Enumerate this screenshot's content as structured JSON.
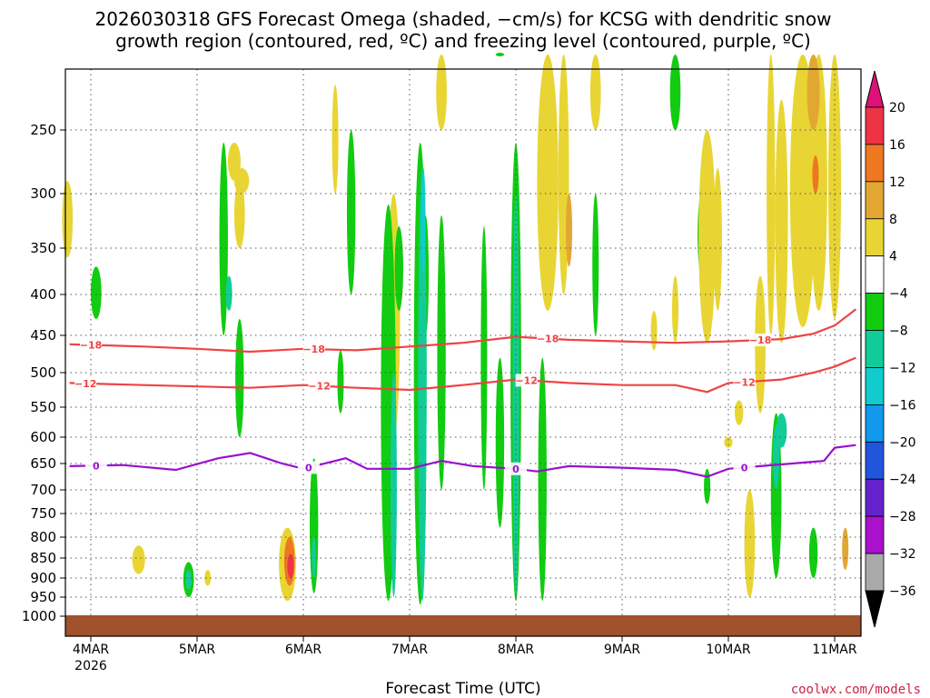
{
  "chart_data": {
    "type": "heatmap",
    "title_line1": "2026030318 GFS Forecast Omega (shaded, −cm/s) for KCSG with dendritic snow",
    "title_line2": "growth region (contoured, red, ºC) and freezing level (contoured, purple, ºC)",
    "xlabel": "Forecast Time (UTC)",
    "x_ticks": [
      "4MAR",
      "5MAR",
      "6MAR",
      "7MAR",
      "8MAR",
      "9MAR",
      "10MAR",
      "11MAR"
    ],
    "x_year": "2026",
    "y_ticks": [
      "250",
      "300",
      "350",
      "400",
      "450",
      "500",
      "550",
      "600",
      "650",
      "700",
      "750",
      "800",
      "850",
      "900",
      "950",
      "1000"
    ],
    "y_values": [
      250,
      300,
      350,
      400,
      450,
      500,
      550,
      600,
      650,
      700,
      750,
      800,
      850,
      900,
      950,
      1000
    ],
    "ylim": [
      200,
      1000
    ],
    "xlim_days": [
      -0.2,
      7.2
    ],
    "colorbar_labels": [
      "20",
      "16",
      "12",
      "8",
      "4",
      "−4",
      "−8",
      "−12",
      "−16",
      "−20",
      "−24",
      "−28",
      "−32",
      "−36"
    ],
    "colorbar_colors": [
      "#ee3344",
      "#ee7722",
      "#e2a733",
      "#e8d533",
      "#ffffff",
      "#11cc11",
      "#11cc99",
      "#11cccc",
      "#1199ee",
      "#2255dd",
      "#6622cc",
      "#aa11cc",
      "#aaaaaa"
    ],
    "contours": [
      {
        "name": "-18",
        "color": "#ee4444",
        "label": "−18",
        "x": [
          -0.2,
          0.5,
          1.0,
          1.5,
          2.0,
          2.5,
          3.0,
          3.5,
          4.0,
          4.5,
          5.0,
          5.5,
          6.0,
          6.5,
          6.8,
          7.0,
          7.2
        ],
        "p": [
          462,
          465,
          468,
          472,
          468,
          470,
          465,
          460,
          452,
          456,
          458,
          460,
          458,
          455,
          448,
          438,
          418
        ],
        "label_x": [
          0.0,
          2.1,
          4.3,
          6.3
        ]
      },
      {
        "name": "-12",
        "color": "#ee4444",
        "label": "−12",
        "x": [
          -0.2,
          0.5,
          1.0,
          1.5,
          2.0,
          2.5,
          3.0,
          3.5,
          4.0,
          4.5,
          5.0,
          5.5,
          5.8,
          6.0,
          6.5,
          6.8,
          7.0,
          7.2
        ],
        "p": [
          515,
          518,
          520,
          522,
          518,
          522,
          525,
          518,
          510,
          515,
          518,
          518,
          528,
          515,
          510,
          500,
          492,
          480
        ],
        "label_x": [
          -0.05,
          2.15,
          4.1,
          6.15
        ]
      },
      {
        "name": "0",
        "color": "#9911cc",
        "label": "0",
        "x": [
          -0.2,
          0.3,
          0.8,
          1.2,
          1.5,
          1.8,
          2.0,
          2.4,
          2.6,
          3.0,
          3.3,
          3.6,
          4.0,
          4.2,
          4.5,
          5.0,
          5.5,
          5.8,
          6.0,
          6.3,
          6.6,
          6.9,
          7.0,
          7.2
        ],
        "p": [
          655,
          653,
          662,
          640,
          630,
          650,
          660,
          640,
          660,
          660,
          645,
          655,
          660,
          665,
          655,
          658,
          662,
          675,
          660,
          655,
          650,
          645,
          620,
          615
        ],
        "label_x": [
          0.05,
          2.05,
          4.0,
          6.15
        ]
      }
    ]
  }
}
